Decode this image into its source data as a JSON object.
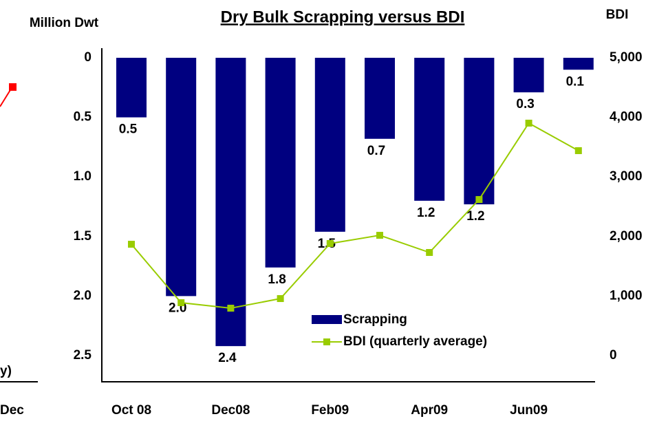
{
  "chart_data": {
    "type": "bar_line",
    "title": "Dry Bulk Scrapping versus BDI",
    "y_label": "Million Dwt",
    "y2_label": "BDI",
    "categories": [
      "Oct 08",
      null,
      "Dec08",
      null,
      "Feb09",
      null,
      "Apr09",
      null,
      "Jun09",
      null
    ],
    "series": [
      {
        "name": "Scrapping",
        "color": "#000080",
        "kind": "bar",
        "values": [
          0.5,
          2.0,
          2.42,
          1.76,
          1.46,
          0.68,
          1.2,
          1.23,
          0.29,
          0.1
        ],
        "value_labels": [
          "0.5",
          "2.0",
          "2.4",
          "1.8",
          "1.5",
          "0.7",
          "1.2",
          "1.2",
          "0.3",
          "0.1"
        ]
      },
      {
        "name": "BDI (quarterly average)",
        "color": "#99cc00",
        "kind": "line",
        "axis": "y2",
        "values": [
          1870,
          889,
          797,
          958,
          1882,
          2020,
          1732,
          2621,
          3903,
          3441
        ]
      }
    ],
    "ylim": [
      0,
      2.5
    ],
    "y_inverted": true,
    "yticks": [
      0,
      {
        "value": 0.5,
        "label": "0.5"
      },
      {
        "value": 1,
        "label": "1.0"
      },
      {
        "value": 1.5,
        "label": "1.5"
      },
      {
        "value": 2,
        "label": "2.0"
      },
      {
        "value": 2.5,
        "label": "2.5"
      }
    ],
    "y2lim": [
      0,
      5000
    ],
    "y2ticks": [
      0,
      {
        "value": 1000,
        "label": "1,000"
      },
      {
        "value": 2000,
        "label": "2,000"
      },
      {
        "value": 3000,
        "label": "3,000"
      },
      {
        "value": 4000,
        "label": "4,000"
      },
      {
        "value": 5000,
        "label": "5,000"
      }
    ],
    "legend": "lower right"
  },
  "fragment": {
    "texts": [
      "y)",
      "Dec"
    ]
  }
}
